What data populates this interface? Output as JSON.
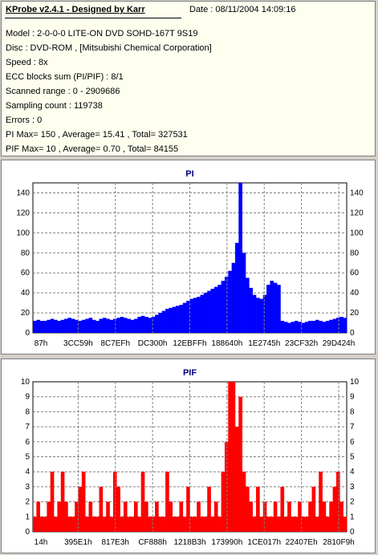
{
  "info": {
    "title": "KProbe v2.4.1 - Designed by Karr",
    "date": "Date : 08/11/2004 14:09:16",
    "lines": [
      "Model : 2-0-0-0 LITE-ON DVD SOHD-167T    9S19",
      "Disc : DVD-ROM ,  [Mitsubishi Chemical Corporation]",
      "Speed : 8x",
      "ECC blocks sum (PI/PIF) : 8/1",
      "Scanned range : 0 - 2909686",
      "Sampling count : 119738",
      "Errors : 0",
      "PI Max= 150 , Average= 15.41 , Total= 327531",
      "PIF Max= 10 , Average= 0.70 , Total= 84155"
    ]
  },
  "chart_data": [
    {
      "type": "bar",
      "title": "PI",
      "color": "#0000ff",
      "ylim": [
        0,
        150
      ],
      "yticks": [
        0,
        20,
        40,
        60,
        80,
        100,
        120,
        140
      ],
      "xtick_labels": [
        "87h",
        "3CC59h",
        "8C7EFh",
        "DC300h",
        "12EBFFh",
        "188640h",
        "1E2745h",
        "23CF32h",
        "29D424h"
      ],
      "grid": true,
      "series": [
        {
          "values": [
            12,
            13,
            12,
            12,
            13,
            14,
            13,
            12,
            13,
            14,
            15,
            14,
            13,
            12,
            13,
            14,
            15,
            13,
            12,
            14,
            15,
            14,
            13,
            14,
            15,
            16,
            15,
            14,
            13,
            14,
            16,
            17,
            16,
            15,
            16,
            18,
            20,
            22,
            24,
            25,
            26,
            27,
            28,
            30,
            32,
            34,
            35,
            36,
            38,
            40,
            42,
            44,
            46,
            48,
            52,
            56,
            62,
            70,
            90,
            150,
            80,
            55,
            45,
            38,
            35,
            34,
            38,
            48,
            52,
            50,
            48,
            12,
            11,
            10,
            11,
            12,
            11,
            10,
            11,
            12,
            12,
            13,
            12,
            11,
            12,
            13,
            14,
            15,
            16,
            15
          ]
        }
      ]
    },
    {
      "type": "bar",
      "title": "PIF",
      "color": "#ff0000",
      "ylim": [
        0,
        10
      ],
      "yticks": [
        0,
        1,
        2,
        3,
        4,
        5,
        6,
        7,
        8,
        9,
        10
      ],
      "xtick_labels": [
        "14h",
        "395E1h",
        "817E3h",
        "CF888h",
        "1218B3h",
        "173990h",
        "1CE017h",
        "22407Eh",
        "2810F9h"
      ],
      "grid": true,
      "series": [
        {
          "values": [
            1,
            2,
            1,
            1,
            2,
            4,
            1,
            2,
            4,
            2,
            1,
            1,
            2,
            3,
            4,
            1,
            2,
            1,
            1,
            3,
            1,
            2,
            1,
            4,
            3,
            1,
            2,
            1,
            1,
            2,
            1,
            4,
            2,
            1,
            1,
            2,
            1,
            1,
            4,
            2,
            1,
            1,
            2,
            1,
            3,
            1,
            1,
            2,
            1,
            1,
            3,
            1,
            2,
            1,
            4,
            6,
            10,
            10,
            7,
            9,
            4,
            3,
            2,
            1,
            3,
            1,
            2,
            1,
            1,
            2,
            1,
            3,
            1,
            2,
            1,
            1,
            2,
            1,
            1,
            2,
            3,
            1,
            4,
            2,
            1,
            2,
            3,
            4,
            2,
            1
          ]
        }
      ]
    }
  ]
}
